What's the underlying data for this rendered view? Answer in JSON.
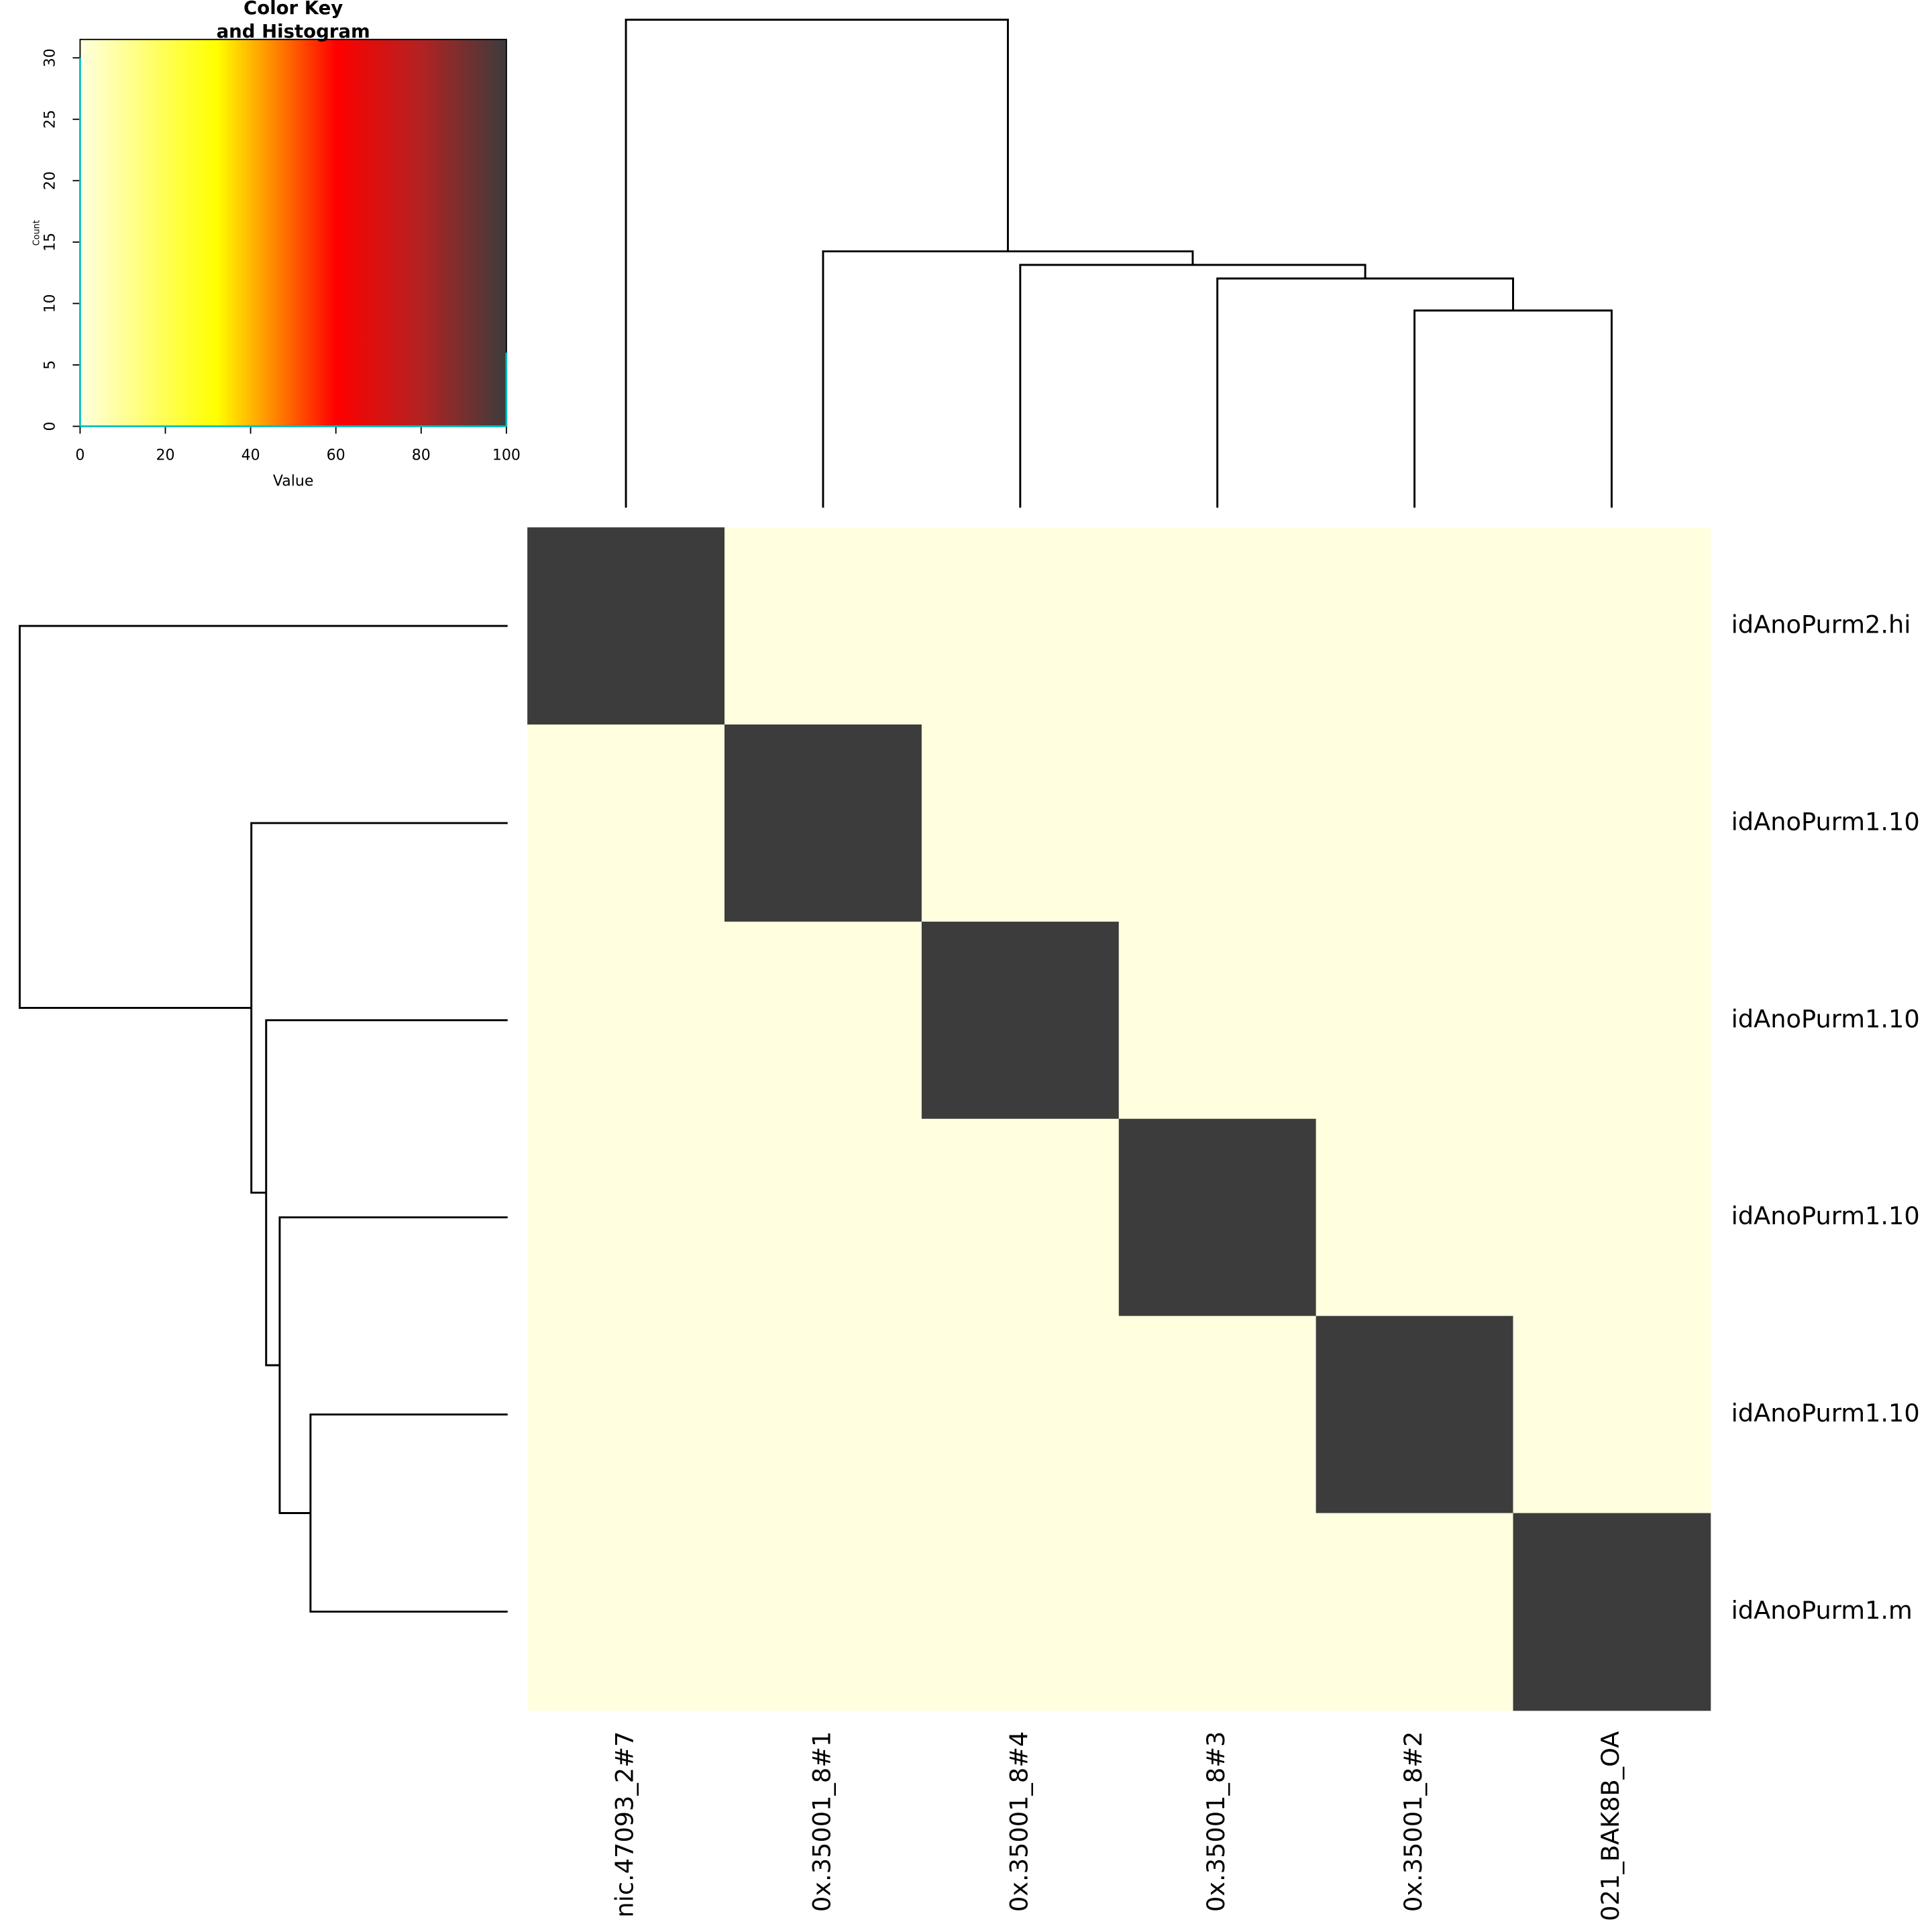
{
  "chart_data": {
    "type": "heatmap",
    "key": {
      "title": [
        "Color Key",
        "and Histogram"
      ],
      "xlabel": "Value",
      "ylabel": "Count",
      "xlim": [
        0,
        100
      ],
      "ylim": [
        0,
        31.5
      ],
      "xticks": [
        0,
        20,
        40,
        60,
        80,
        100
      ],
      "yticks": [
        0,
        5,
        10,
        15,
        20,
        25,
        30
      ],
      "histogram": {
        "x": [
          0,
          100
        ],
        "counts": [
          30,
          6
        ],
        "color": "#00bfbf"
      }
    },
    "colorscale": [
      {
        "value": 0,
        "color": "#ffffe0"
      },
      {
        "value": 32,
        "color": "#ffff00"
      },
      {
        "value": 45,
        "color": "#ff8c00"
      },
      {
        "value": 60,
        "color": "#ff0000"
      },
      {
        "value": 80,
        "color": "#b22222"
      },
      {
        "value": 100,
        "color": "#3c3c3c"
      }
    ],
    "rows": [
      "idAnoPurm2.hi",
      "idAnoPurm1.10",
      "idAnoPurm1.10",
      "idAnoPurm1.10",
      "idAnoPurm1.10",
      "idAnoPurm1.m"
    ],
    "columns": [
      "nic.47093_2#7",
      "0x.35001_8#1",
      "0x.35001_8#4",
      "0x.35001_8#3",
      "0x.35001_8#2",
      "021_BAK8B_OA"
    ],
    "values": [
      [
        100,
        0,
        0,
        0,
        0,
        0
      ],
      [
        0,
        100,
        0,
        0,
        0,
        0
      ],
      [
        0,
        0,
        100,
        0,
        0,
        0
      ],
      [
        0,
        0,
        0,
        100,
        0,
        0
      ],
      [
        0,
        0,
        0,
        0,
        100,
        0
      ],
      [
        0,
        0,
        0,
        0,
        0,
        100
      ]
    ]
  }
}
